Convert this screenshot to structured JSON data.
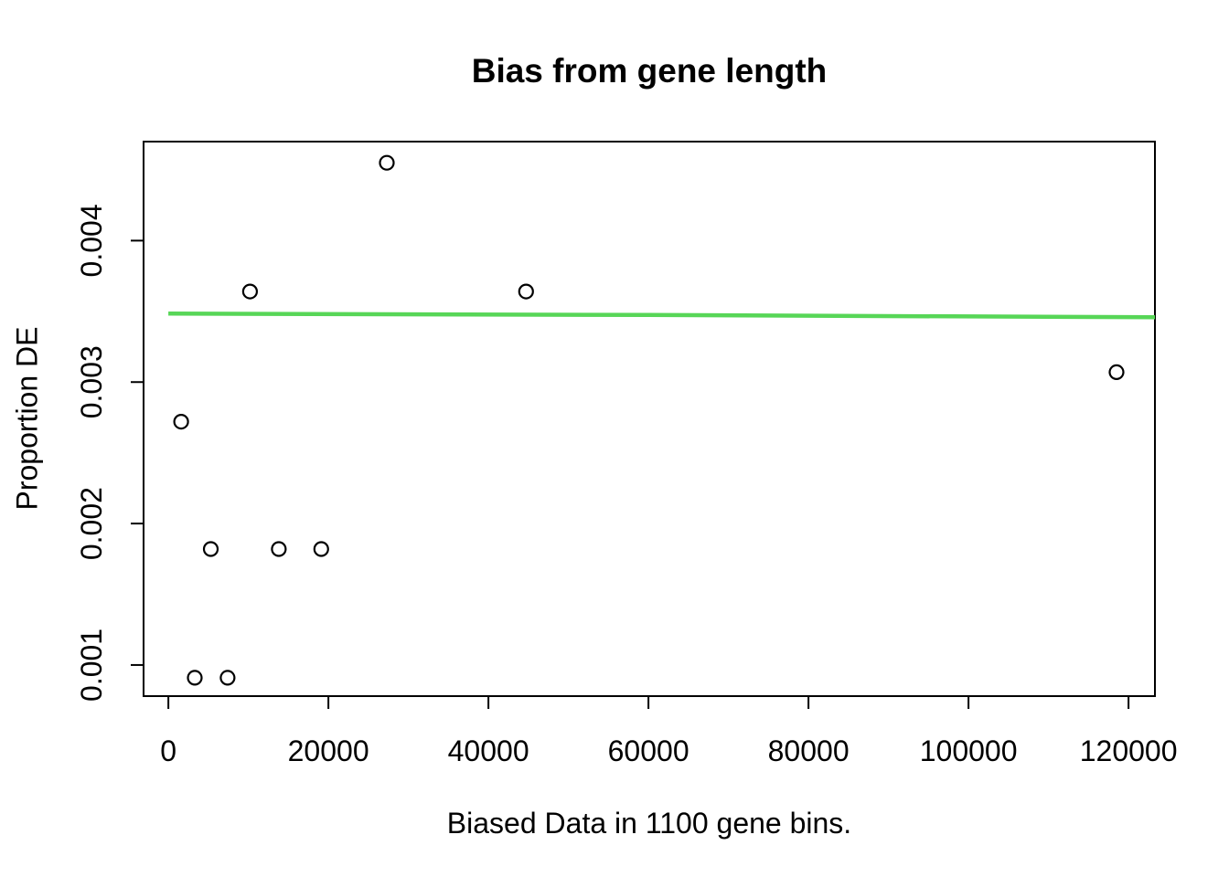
{
  "chart_data": {
    "type": "scatter",
    "title": "Bias from gene length",
    "xlabel": "Biased Data in 1100 gene bins.",
    "ylabel": "Proportion DE",
    "xlim": [
      -3100,
      123300
    ],
    "ylim": [
      0.00078,
      0.0047
    ],
    "x_ticks": [
      0,
      20000,
      40000,
      60000,
      80000,
      100000,
      120000
    ],
    "x_tick_labels": [
      "0",
      "20000",
      "40000",
      "60000",
      "80000",
      "100000",
      "120000"
    ],
    "y_ticks": [
      0.001,
      0.002,
      0.003,
      0.004
    ],
    "y_tick_labels": [
      "0.001",
      "0.002",
      "0.003",
      "0.004"
    ],
    "grid": false,
    "legend": false,
    "point_style": {
      "shape": "open-circle",
      "color": "#000000"
    },
    "points": [
      {
        "x": 1600,
        "y": 0.00272
      },
      {
        "x": 3300,
        "y": 0.00091
      },
      {
        "x": 5300,
        "y": 0.00182
      },
      {
        "x": 7400,
        "y": 0.00091
      },
      {
        "x": 10200,
        "y": 0.00364
      },
      {
        "x": 13800,
        "y": 0.00182
      },
      {
        "x": 19100,
        "y": 0.00182
      },
      {
        "x": 27300,
        "y": 0.00455
      },
      {
        "x": 44700,
        "y": 0.00364
      },
      {
        "x": 118500,
        "y": 0.00307
      }
    ],
    "fit_line": {
      "color": "#57d657",
      "points": [
        {
          "x": 0,
          "y": 0.003484
        },
        {
          "x": 60000,
          "y": 0.003474
        },
        {
          "x": 123300,
          "y": 0.003458
        }
      ]
    }
  }
}
